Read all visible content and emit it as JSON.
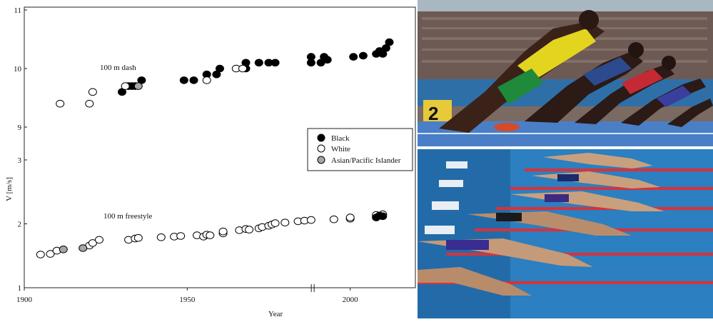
{
  "chart_data": {
    "type": "scatter",
    "xlabel": "Year",
    "ylabel": "V [m/s]",
    "xlim": [
      1900,
      2020
    ],
    "x_ticks": [
      "1900",
      "1950",
      "2000"
    ],
    "legend": {
      "placement": "right-middle",
      "entries": [
        {
          "label": "Black",
          "fill": "#000000"
        },
        {
          "label": "White",
          "fill": "#ffffff"
        },
        {
          "label": "Asian/Pacific Islander",
          "fill": "#a6a6a6"
        }
      ]
    },
    "panels": [
      {
        "annotation": "100 m dash",
        "ylim": [
          9,
          11
        ],
        "y_ticks": [
          "9",
          "10",
          "11"
        ],
        "series": [
          {
            "name": "Black",
            "points": [
              [
                1930,
                9.6
              ],
              [
                1932,
                9.7
              ],
              [
                1933,
                9.7
              ],
              [
                1934,
                9.7
              ],
              [
                1936,
                9.8
              ],
              [
                1949,
                9.8
              ],
              [
                1952,
                9.8
              ],
              [
                1956,
                9.9
              ],
              [
                1959,
                9.9
              ],
              [
                1960,
                10.0
              ],
              [
                1968,
                10.1
              ],
              [
                1968,
                10.0
              ],
              [
                1972,
                10.1
              ],
              [
                1975,
                10.1
              ],
              [
                1977,
                10.1
              ],
              [
                1988,
                10.1
              ],
              [
                1988,
                10.2
              ],
              [
                1991,
                10.1
              ],
              [
                1992,
                10.2
              ],
              [
                1993,
                10.15
              ],
              [
                2001,
                10.2
              ],
              [
                2004,
                10.22
              ],
              [
                2008,
                10.25
              ],
              [
                2009,
                10.3
              ],
              [
                2010,
                10.25
              ],
              [
                2011,
                10.35
              ],
              [
                2012,
                10.45
              ]
            ]
          },
          {
            "name": "White",
            "points": [
              [
                1911,
                9.4
              ],
              [
                1920,
                9.4
              ],
              [
                1921,
                9.6
              ],
              [
                1931,
                9.7
              ],
              [
                1956,
                9.8
              ],
              [
                1965,
                10.0
              ],
              [
                1967,
                10.0
              ]
            ]
          },
          {
            "name": "Asian/Pacific Islander",
            "points": [
              [
                1935,
                9.7
              ]
            ]
          }
        ]
      },
      {
        "annotation": "100 m freestyle",
        "ylim": [
          1,
          3
        ],
        "y_ticks": [
          "1",
          "2",
          "3"
        ],
        "series": [
          {
            "name": "White",
            "points": [
              [
                1905,
                1.52
              ],
              [
                1908,
                1.53
              ],
              [
                1910,
                1.58
              ],
              [
                1920,
                1.66
              ],
              [
                1921,
                1.7
              ],
              [
                1923,
                1.75
              ],
              [
                1932,
                1.75
              ],
              [
                1934,
                1.77
              ],
              [
                1935,
                1.78
              ],
              [
                1942,
                1.79
              ],
              [
                1946,
                1.8
              ],
              [
                1948,
                1.81
              ],
              [
                1953,
                1.82
              ],
              [
                1955,
                1.8
              ],
              [
                1956,
                1.83
              ],
              [
                1957,
                1.82
              ],
              [
                1961,
                1.85
              ],
              [
                1961,
                1.88
              ],
              [
                1966,
                1.9
              ],
              [
                1968,
                1.92
              ],
              [
                1969,
                1.91
              ],
              [
                1972,
                1.93
              ],
              [
                1973,
                1.95
              ],
              [
                1975,
                1.97
              ],
              [
                1976,
                1.99
              ],
              [
                1977,
                2.01
              ],
              [
                1980,
                2.02
              ],
              [
                1984,
                2.04
              ],
              [
                1986,
                2.05
              ],
              [
                1988,
                2.06
              ],
              [
                1995,
                2.07
              ],
              [
                2000,
                2.08
              ],
              [
                2000,
                2.1
              ],
              [
                2008,
                2.12
              ],
              [
                2008,
                2.14
              ],
              [
                2010,
                2.15
              ]
            ]
          },
          {
            "name": "Black",
            "points": [
              [
                2008,
                2.1
              ],
              [
                2009,
                2.13
              ],
              [
                2010,
                2.12
              ]
            ]
          },
          {
            "name": "Asian/Pacific Islander",
            "points": [
              [
                1912,
                1.6
              ],
              [
                1918,
                1.62
              ]
            ]
          }
        ]
      }
    ]
  },
  "photo": {
    "top_scene": "sprinters-start",
    "bottom_scene": "swimmers-dive",
    "colors": {
      "sky": "#8fa9b7",
      "crowd": "#6d5a55",
      "track": "#c8503a",
      "lane_blue": "#2e6fb8",
      "pool": "#2c7fc0",
      "pool_deep": "#1e5e98",
      "lane_rope": "#d8323a"
    }
  }
}
